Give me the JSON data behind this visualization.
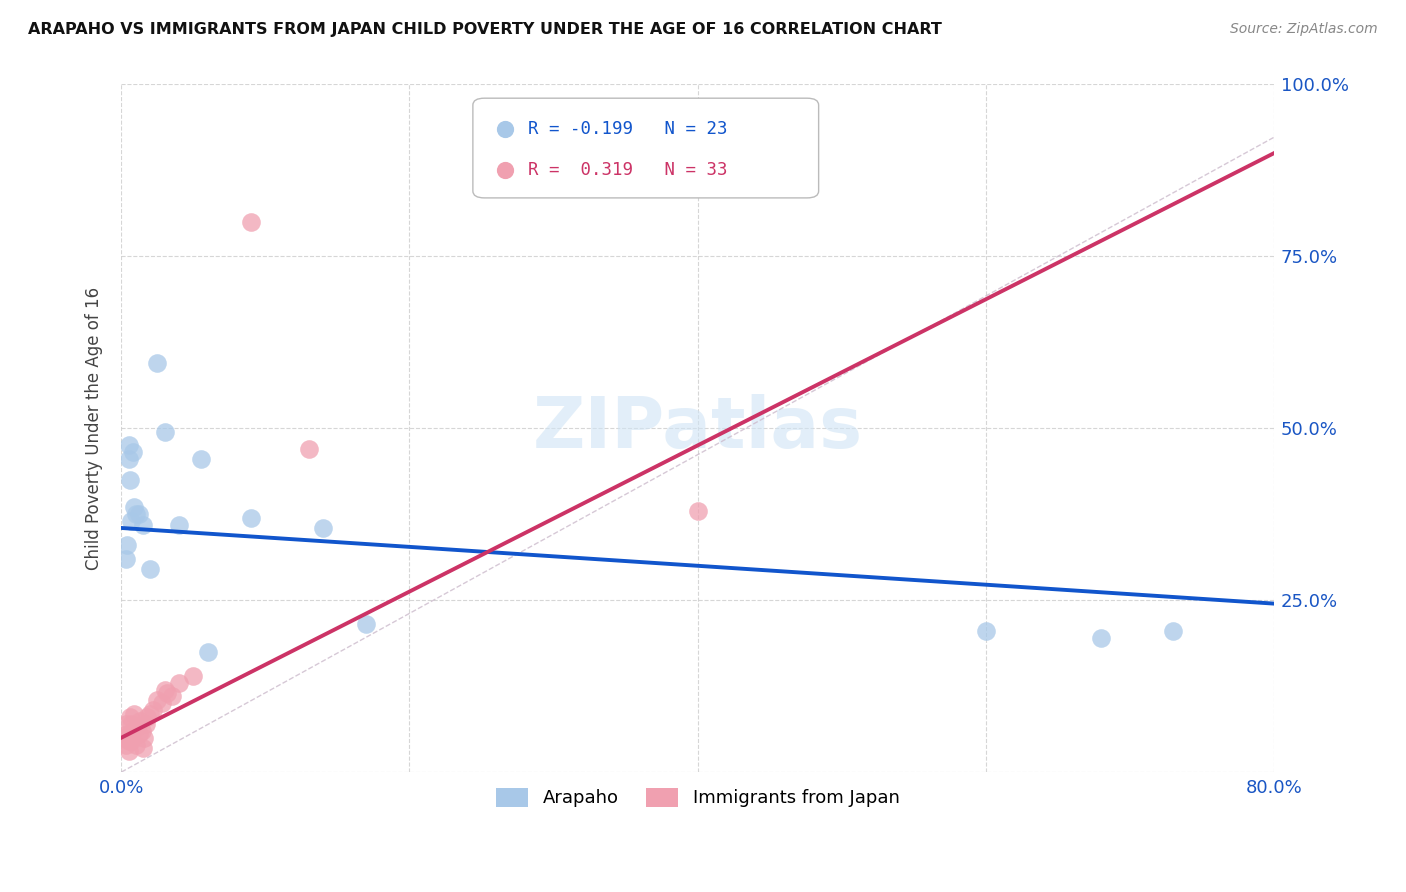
{
  "title": "ARAPAHO VS IMMIGRANTS FROM JAPAN CHILD POVERTY UNDER THE AGE OF 16 CORRELATION CHART",
  "source": "Source: ZipAtlas.com",
  "ylabel": "Child Poverty Under the Age of 16",
  "xlim": [
    0.0,
    0.8
  ],
  "ylim": [
    0.0,
    1.0
  ],
  "arapaho_R": -0.199,
  "arapaho_N": 23,
  "japan_R": 0.319,
  "japan_N": 33,
  "arapaho_color": "#a8c8e8",
  "japan_color": "#f0a0b0",
  "arapaho_line_color": "#1155cc",
  "japan_line_color": "#cc3366",
  "background_color": "#ffffff",
  "watermark": "ZIPatlas",
  "arapaho_x": [
    0.003,
    0.004,
    0.005,
    0.005,
    0.006,
    0.007,
    0.008,
    0.009,
    0.01,
    0.012,
    0.015,
    0.02,
    0.025,
    0.03,
    0.04,
    0.055,
    0.06,
    0.09,
    0.14,
    0.17,
    0.6,
    0.68,
    0.73
  ],
  "arapaho_y": [
    0.31,
    0.33,
    0.455,
    0.475,
    0.425,
    0.365,
    0.465,
    0.385,
    0.375,
    0.375,
    0.36,
    0.295,
    0.595,
    0.495,
    0.36,
    0.455,
    0.175,
    0.37,
    0.355,
    0.215,
    0.205,
    0.195,
    0.205
  ],
  "japan_x": [
    0.002,
    0.003,
    0.003,
    0.004,
    0.005,
    0.005,
    0.006,
    0.006,
    0.007,
    0.007,
    0.008,
    0.009,
    0.01,
    0.011,
    0.012,
    0.013,
    0.014,
    0.015,
    0.016,
    0.017,
    0.018,
    0.02,
    0.022,
    0.025,
    0.028,
    0.03,
    0.032,
    0.035,
    0.04,
    0.05,
    0.09,
    0.13,
    0.4
  ],
  "japan_y": [
    0.05,
    0.04,
    0.07,
    0.055,
    0.045,
    0.03,
    0.055,
    0.08,
    0.07,
    0.045,
    0.06,
    0.085,
    0.04,
    0.065,
    0.055,
    0.075,
    0.06,
    0.035,
    0.05,
    0.07,
    0.08,
    0.085,
    0.09,
    0.105,
    0.1,
    0.12,
    0.115,
    0.11,
    0.13,
    0.14,
    0.8,
    0.47,
    0.38
  ],
  "arapaho_line_x0": 0.0,
  "arapaho_line_y0": 0.355,
  "arapaho_line_x1": 0.8,
  "arapaho_line_y1": 0.245,
  "japan_line_x0": 0.0,
  "japan_line_y0": 0.05,
  "japan_line_x1": 0.4,
  "japan_line_y1": 0.475
}
